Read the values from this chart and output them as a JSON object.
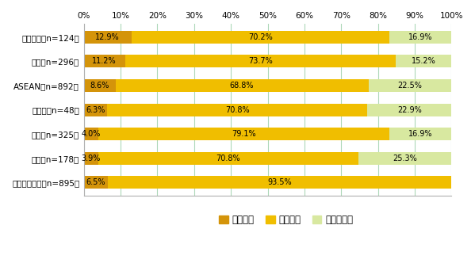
{
  "categories": [
    "メキシコ（n=124）",
    "中国（n=296）",
    "ASEAN（n=892）",
    "カナダ（n=48）",
    "米国（n=325）",
    "欧州（n=178）",
    "（参考）日本（n=895）"
  ],
  "values_ari": [
    12.9,
    11.2,
    8.6,
    6.3,
    4.0,
    3.9,
    6.5
  ],
  "values_nashi": [
    70.2,
    73.7,
    68.8,
    70.8,
    79.1,
    70.8,
    93.5
  ],
  "values_wakaranai": [
    16.9,
    15.2,
    22.5,
    22.9,
    16.9,
    25.3,
    0.0
  ],
  "color_ari": "#D4940A",
  "color_nashi": "#F0BE00",
  "color_wakaranai": "#D8E8A0",
  "legend_ari": "変更あり",
  "legend_nashi": "変更なし",
  "legend_wakaranai": "分からない",
  "xlim": [
    0,
    100
  ],
  "xticks": [
    0,
    10,
    20,
    30,
    40,
    50,
    60,
    70,
    80,
    90,
    100
  ],
  "background_color": "#ffffff",
  "bar_height": 0.52,
  "grid_color": "#add8b8",
  "label_fontsize": 7.0,
  "tick_fontsize": 7.5,
  "legend_fontsize": 8.5,
  "border_color": "#b0b0b0"
}
